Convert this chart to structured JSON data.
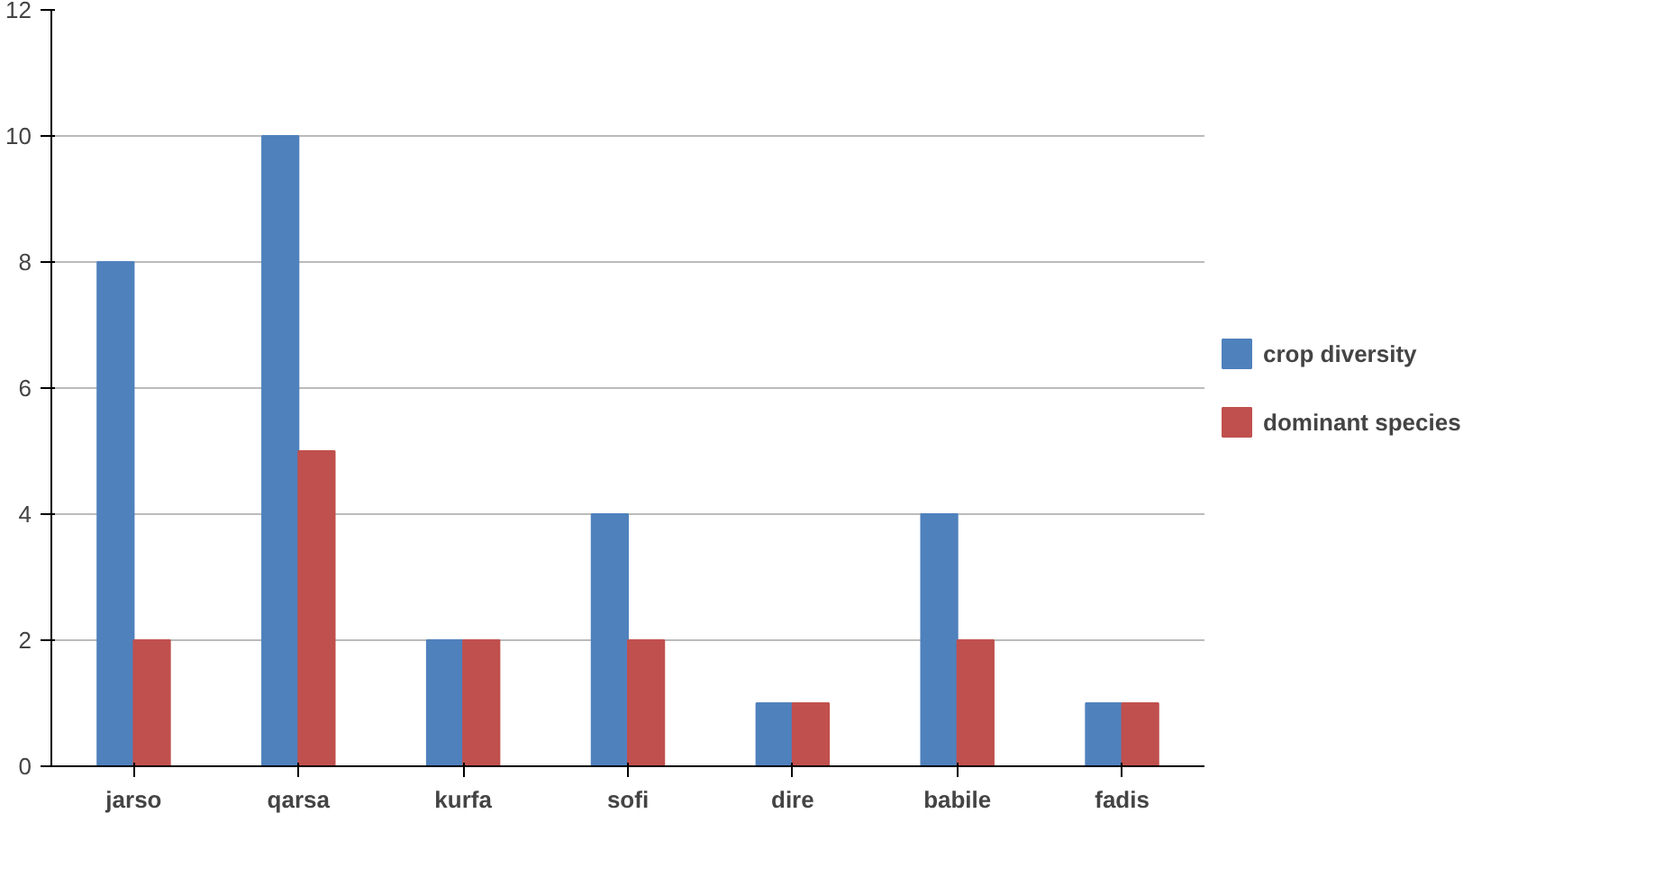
{
  "chart_data": {
    "type": "bar",
    "categories": [
      "jarso",
      "qarsa",
      "kurfa",
      "sofi",
      "dire",
      "babile",
      "fadis"
    ],
    "series": [
      {
        "name": "crop diversity",
        "color": "#4f81bd",
        "values": [
          8,
          10,
          2,
          4,
          1,
          4,
          1
        ]
      },
      {
        "name": "dominant species",
        "color": "#c0504d",
        "values": [
          2,
          5,
          2,
          2,
          1,
          2,
          1
        ]
      }
    ],
    "ylim": [
      0,
      12
    ],
    "yticks": [
      0,
      2,
      4,
      6,
      8,
      10,
      12
    ],
    "grid": "y",
    "legend": "right"
  }
}
